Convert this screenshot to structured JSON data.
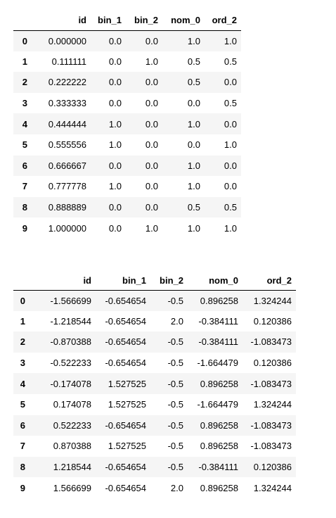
{
  "table_1": {
    "columns": [
      "",
      "id",
      "bin_1",
      "bin_2",
      "nom_0",
      "ord_2"
    ],
    "rows": [
      [
        "0",
        "0.000000",
        "0.0",
        "0.0",
        "1.0",
        "1.0"
      ],
      [
        "1",
        "0.111111",
        "0.0",
        "1.0",
        "0.5",
        "0.5"
      ],
      [
        "2",
        "0.222222",
        "0.0",
        "0.0",
        "0.5",
        "0.0"
      ],
      [
        "3",
        "0.333333",
        "0.0",
        "0.0",
        "0.0",
        "0.5"
      ],
      [
        "4",
        "0.444444",
        "1.0",
        "0.0",
        "1.0",
        "0.0"
      ],
      [
        "5",
        "0.555556",
        "1.0",
        "0.0",
        "0.0",
        "1.0"
      ],
      [
        "6",
        "0.666667",
        "0.0",
        "0.0",
        "1.0",
        "0.0"
      ],
      [
        "7",
        "0.777778",
        "1.0",
        "0.0",
        "1.0",
        "0.0"
      ],
      [
        "8",
        "0.888889",
        "0.0",
        "0.0",
        "0.5",
        "0.5"
      ],
      [
        "9",
        "1.000000",
        "0.0",
        "1.0",
        "1.0",
        "1.0"
      ]
    ]
  },
  "table_2": {
    "columns": [
      "",
      "id",
      "bin_1",
      "bin_2",
      "nom_0",
      "ord_2"
    ],
    "rows": [
      [
        "0",
        "-1.566699",
        "-0.654654",
        "-0.5",
        "0.896258",
        "1.324244"
      ],
      [
        "1",
        "-1.218544",
        "-0.654654",
        "2.0",
        "-0.384111",
        "0.120386"
      ],
      [
        "2",
        "-0.870388",
        "-0.654654",
        "-0.5",
        "-0.384111",
        "-1.083473"
      ],
      [
        "3",
        "-0.522233",
        "-0.654654",
        "-0.5",
        "-1.664479",
        "0.120386"
      ],
      [
        "4",
        "-0.174078",
        "1.527525",
        "-0.5",
        "0.896258",
        "-1.083473"
      ],
      [
        "5",
        "0.174078",
        "1.527525",
        "-0.5",
        "-1.664479",
        "1.324244"
      ],
      [
        "6",
        "0.522233",
        "-0.654654",
        "-0.5",
        "0.896258",
        "-1.083473"
      ],
      [
        "7",
        "0.870388",
        "1.527525",
        "-0.5",
        "0.896258",
        "-1.083473"
      ],
      [
        "8",
        "1.218544",
        "-0.654654",
        "-0.5",
        "-0.384111",
        "0.120386"
      ],
      [
        "9",
        "1.566699",
        "-0.654654",
        "2.0",
        "0.896258",
        "1.324244"
      ]
    ]
  },
  "colors": {
    "stripe": "#f5f5f5",
    "background": "#ffffff",
    "header_rule": "#000000"
  }
}
